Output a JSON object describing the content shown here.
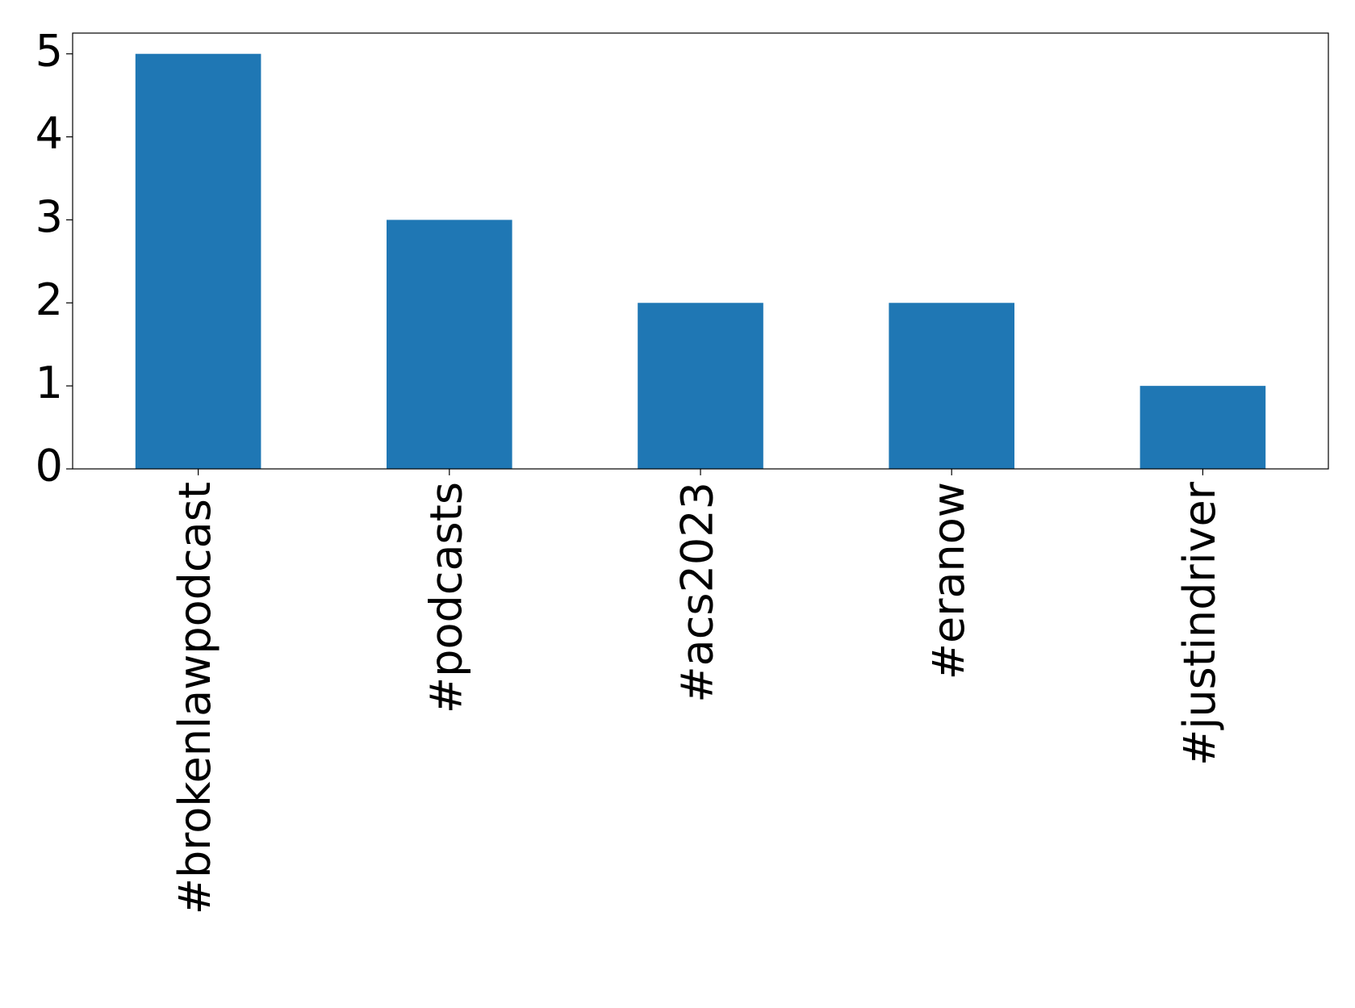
{
  "chart_data": {
    "type": "bar",
    "categories": [
      "#brokenlawpodcast",
      "#podcasts",
      "#acs2023",
      "#eranow",
      "#justindriver"
    ],
    "values": [
      5,
      3,
      2,
      2,
      1
    ],
    "color": "#1f77b4",
    "ylim": [
      0,
      5.25
    ],
    "yticks": [
      0,
      1,
      2,
      3,
      4,
      5
    ],
    "grid": false
  }
}
